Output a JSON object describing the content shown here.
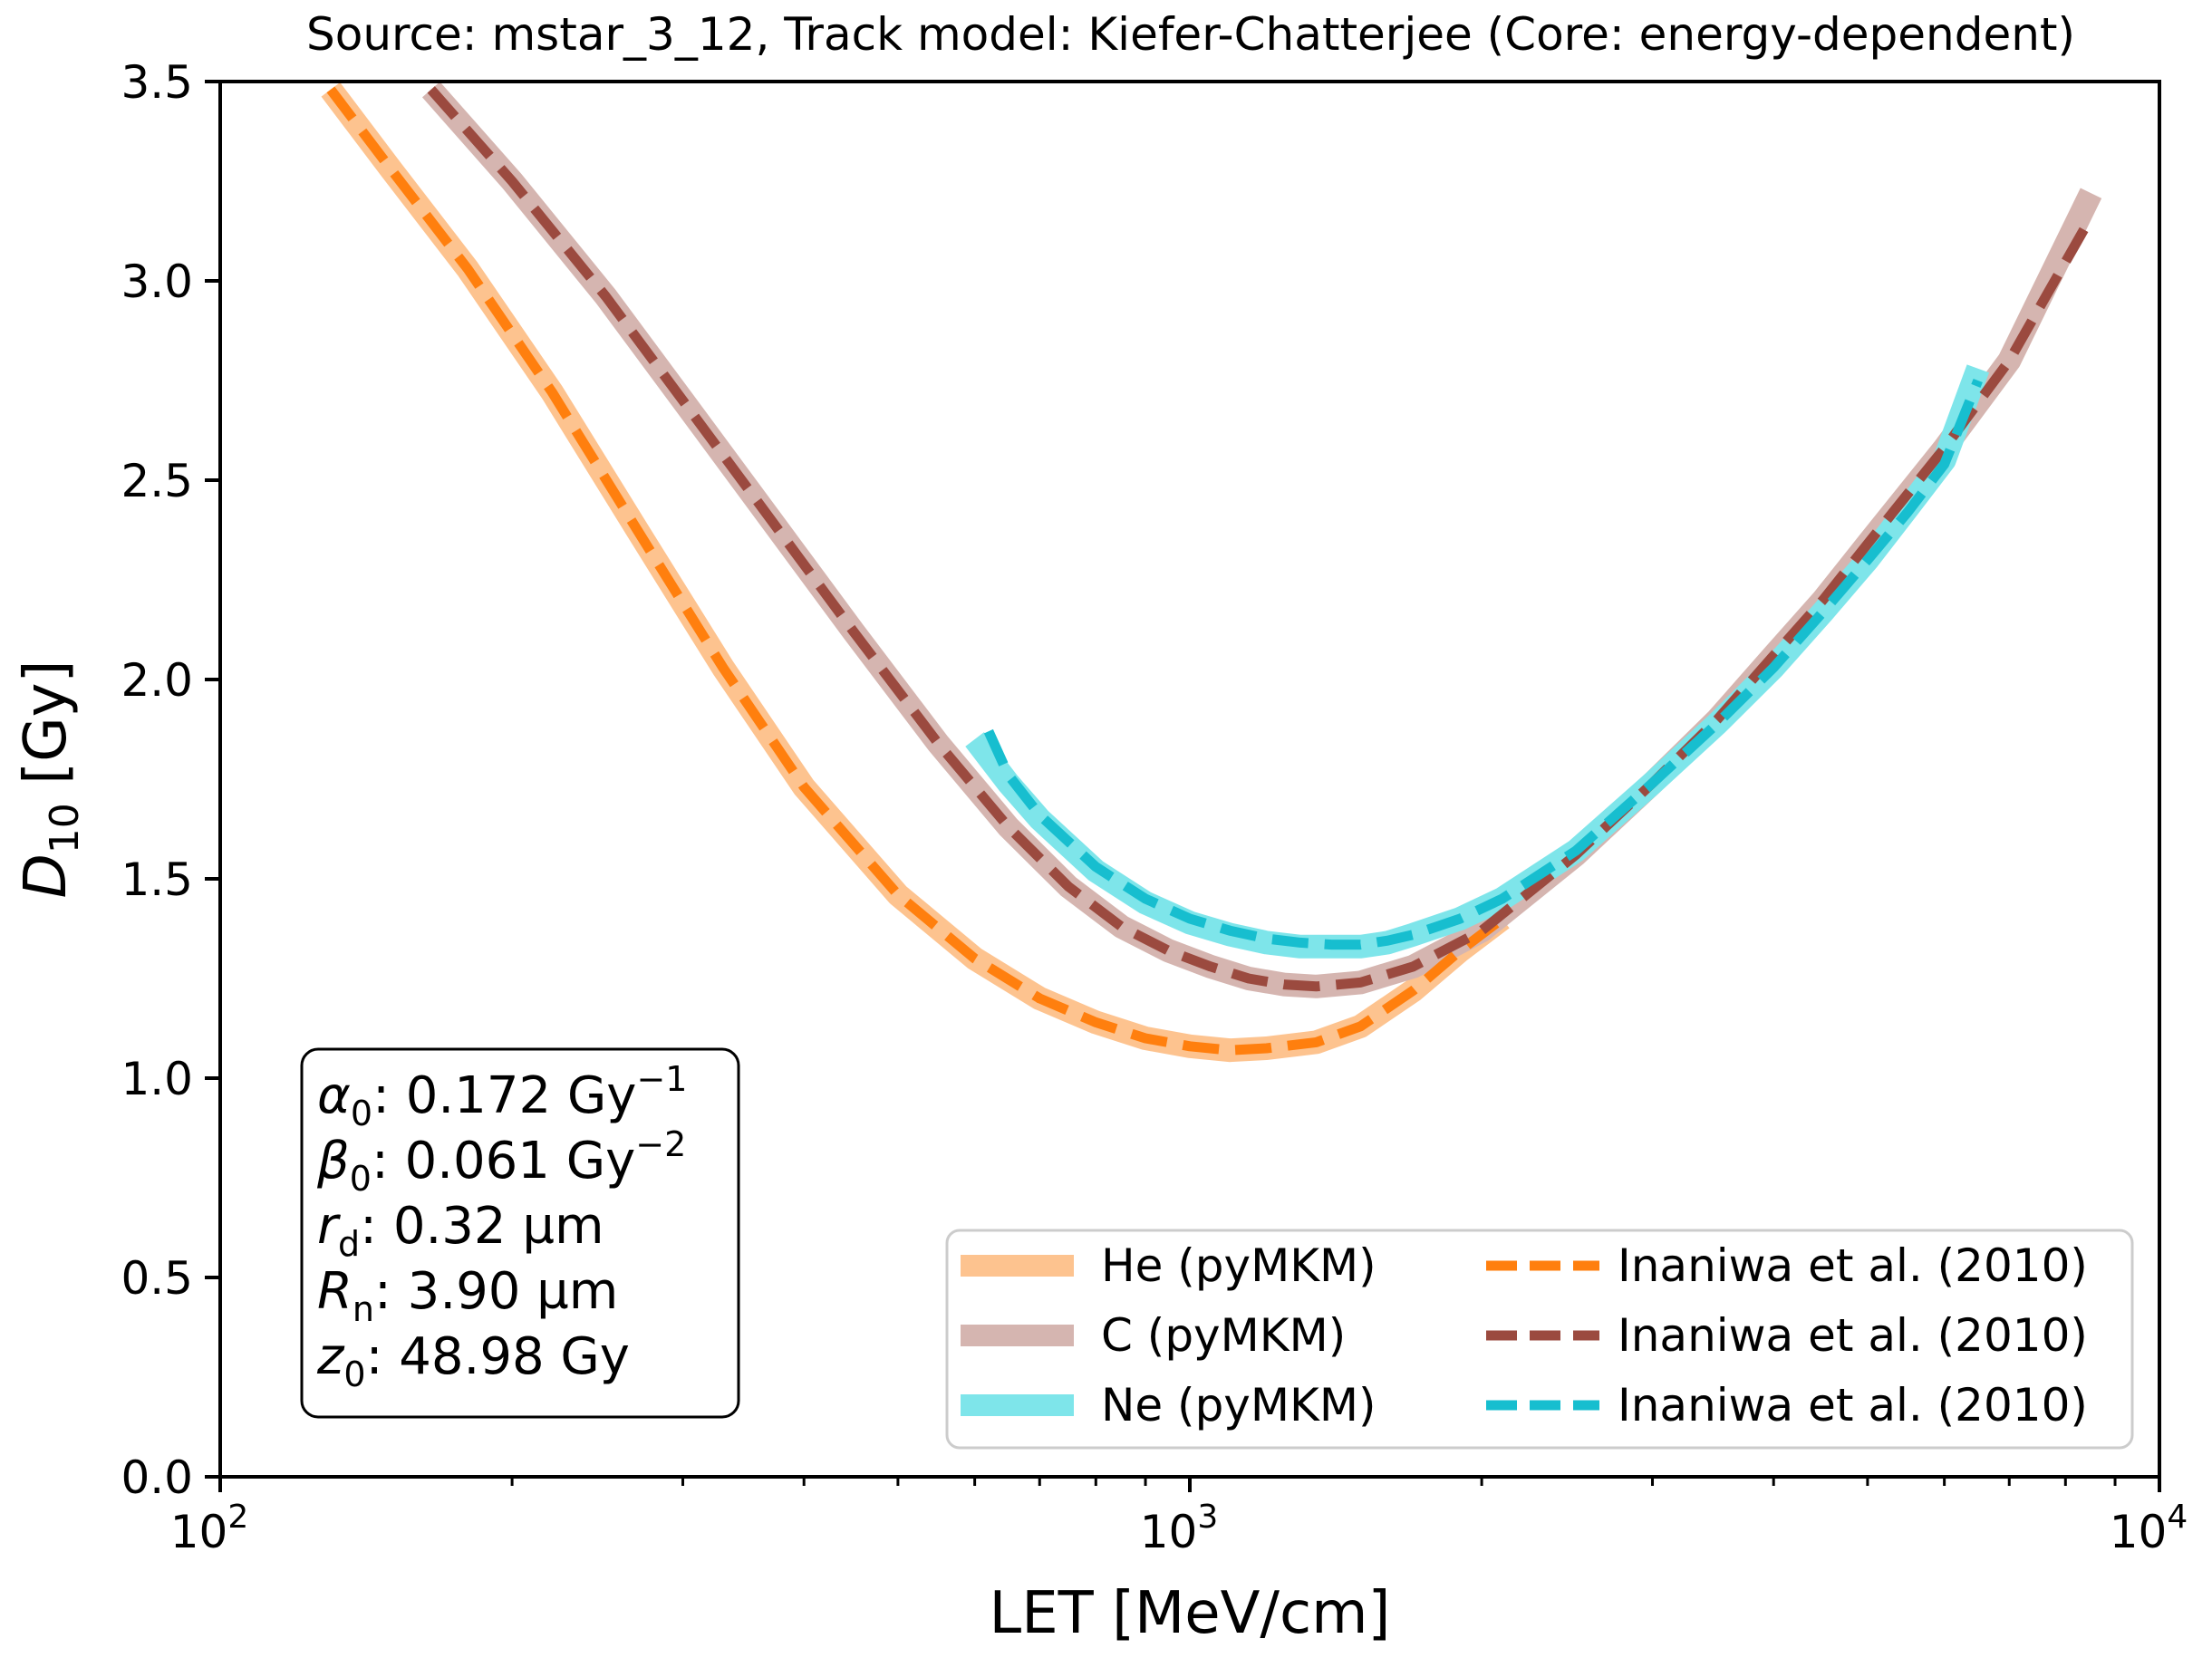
{
  "chart_data": {
    "type": "line",
    "title": "Source: mstar_3_12, Track model: Kiefer-Chatterjee (Core: energy-dependent)",
    "xlabel": "LET [MeV/cm]",
    "ylabel": "D10 [Gy]",
    "ylabel_main": "D",
    "ylabel_sub": "10",
    "ylabel_unit": "[Gy]",
    "xscale": "log",
    "xlim": [
      100,
      10000
    ],
    "ylim": [
      0.0,
      3.5
    ],
    "grid": false,
    "x_ticks": [
      {
        "value": 100,
        "base": "10",
        "exp": "2"
      },
      {
        "value": 1000,
        "base": "10",
        "exp": "3"
      },
      {
        "value": 10000,
        "base": "10",
        "exp": "4"
      }
    ],
    "y_ticks": [
      "0.0",
      "0.5",
      "1.0",
      "1.5",
      "2.0",
      "2.5",
      "3.0",
      "3.5"
    ],
    "legend_position": "lower-right",
    "series": [
      {
        "name": "He (pyMKM)",
        "style": "solid",
        "color": "#fdc38f",
        "x": [
          130,
          150,
          180,
          220,
          270,
          330,
          400,
          500,
          600,
          700,
          800,
          900,
          1000,
          1100,
          1200,
          1350,
          1500,
          1700,
          1900,
          2100
        ],
        "y": [
          3.48,
          3.28,
          3.03,
          2.72,
          2.37,
          2.03,
          1.73,
          1.46,
          1.3,
          1.2,
          1.14,
          1.1,
          1.08,
          1.07,
          1.075,
          1.09,
          1.13,
          1.22,
          1.32,
          1.4
        ]
      },
      {
        "name": "C (pyMKM)",
        "style": "solid",
        "color": "#d5b5b0",
        "x": [
          165,
          200,
          250,
          300,
          370,
          450,
          550,
          650,
          750,
          850,
          950,
          1050,
          1150,
          1250,
          1350,
          1500,
          1700,
          2000,
          2500,
          3000,
          3500,
          4000,
          4500,
          5000,
          6000,
          7000,
          8500
        ],
        "y": [
          3.48,
          3.25,
          2.96,
          2.7,
          2.4,
          2.12,
          1.84,
          1.63,
          1.48,
          1.38,
          1.32,
          1.28,
          1.25,
          1.235,
          1.23,
          1.24,
          1.28,
          1.37,
          1.56,
          1.74,
          1.9,
          2.06,
          2.2,
          2.34,
          2.58,
          2.8,
          3.22
        ]
      },
      {
        "name": "Ne (pyMKM)",
        "style": "solid",
        "color": "#7ee5ea",
        "x": [
          600,
          650,
          700,
          800,
          900,
          1000,
          1100,
          1200,
          1300,
          1400,
          1500,
          1600,
          1700,
          1900,
          2100,
          2500,
          3000,
          3500,
          4000,
          4500,
          5000,
          5500,
          6000,
          6500
        ],
        "y": [
          1.85,
          1.74,
          1.65,
          1.52,
          1.44,
          1.39,
          1.36,
          1.34,
          1.33,
          1.33,
          1.33,
          1.34,
          1.36,
          1.4,
          1.45,
          1.57,
          1.74,
          1.89,
          2.03,
          2.17,
          2.3,
          2.43,
          2.55,
          2.78
        ]
      },
      {
        "name": "Inaniwa et al. (2010)",
        "style": "dashed",
        "color": "#ff7f0e",
        "x": [
          130,
          150,
          180,
          220,
          270,
          330,
          400,
          500,
          600,
          700,
          800,
          900,
          1000,
          1100,
          1200,
          1350,
          1500,
          1700,
          1900,
          2100
        ],
        "y": [
          3.48,
          3.28,
          3.03,
          2.72,
          2.37,
          2.03,
          1.73,
          1.46,
          1.3,
          1.2,
          1.14,
          1.1,
          1.08,
          1.07,
          1.075,
          1.09,
          1.13,
          1.22,
          1.32,
          1.4
        ]
      },
      {
        "name": "Inaniwa et al. (2010)",
        "style": "dashed",
        "color": "#9b4a3f",
        "x": [
          165,
          200,
          250,
          300,
          370,
          450,
          550,
          650,
          750,
          850,
          950,
          1050,
          1150,
          1250,
          1350,
          1500,
          1700,
          2000,
          2500,
          3000,
          3500,
          4000,
          4500,
          5000,
          6000,
          7000,
          8500
        ],
        "y": [
          3.48,
          3.25,
          2.96,
          2.7,
          2.4,
          2.12,
          1.84,
          1.63,
          1.48,
          1.38,
          1.32,
          1.28,
          1.25,
          1.235,
          1.23,
          1.24,
          1.28,
          1.37,
          1.56,
          1.74,
          1.9,
          2.06,
          2.2,
          2.34,
          2.58,
          2.8,
          3.16
        ]
      },
      {
        "name": "Inaniwa et al. (2010)",
        "style": "dashed",
        "color": "#17becf",
        "x": [
          620,
          650,
          700,
          800,
          900,
          1000,
          1100,
          1200,
          1300,
          1400,
          1500,
          1600,
          1700,
          1900,
          2100,
          2500,
          3000,
          3500,
          4000,
          4500,
          5000,
          5500,
          6000,
          6500
        ],
        "y": [
          1.87,
          1.76,
          1.66,
          1.53,
          1.45,
          1.4,
          1.37,
          1.35,
          1.34,
          1.335,
          1.335,
          1.345,
          1.36,
          1.4,
          1.45,
          1.57,
          1.74,
          1.89,
          2.03,
          2.17,
          2.3,
          2.42,
          2.54,
          2.75
        ]
      }
    ],
    "legend_entries": [
      {
        "label": "He (pyMKM)",
        "style": "solid",
        "color": "#fdc38f"
      },
      {
        "label": "C (pyMKM)",
        "style": "solid",
        "color": "#d5b5b0"
      },
      {
        "label": "Ne (pyMKM)",
        "style": "solid",
        "color": "#7ee5ea"
      },
      {
        "label": "Inaniwa et al. (2010)",
        "style": "dashed",
        "color": "#ff7f0e"
      },
      {
        "label": "Inaniwa et al. (2010)",
        "style": "dashed",
        "color": "#9b4a3f"
      },
      {
        "label": "Inaniwa et al. (2010)",
        "style": "dashed",
        "color": "#17becf"
      }
    ],
    "annotation_box": {
      "lines": [
        {
          "sym": "α",
          "sub": "0",
          "text": ": 0.172 Gy",
          "sup": "−1"
        },
        {
          "sym": "β",
          "sub": "0",
          "text": ": 0.061 Gy",
          "sup": "−2"
        },
        {
          "sym": "r",
          "sub": "d",
          "text": ": 0.32 µm",
          "sup": ""
        },
        {
          "sym": "R",
          "sub": "n",
          "text": ": 3.90 µm",
          "sup": ""
        },
        {
          "sym": "z",
          "sub": "0",
          "text": ": 48.98 Gy",
          "sup": ""
        }
      ]
    }
  }
}
